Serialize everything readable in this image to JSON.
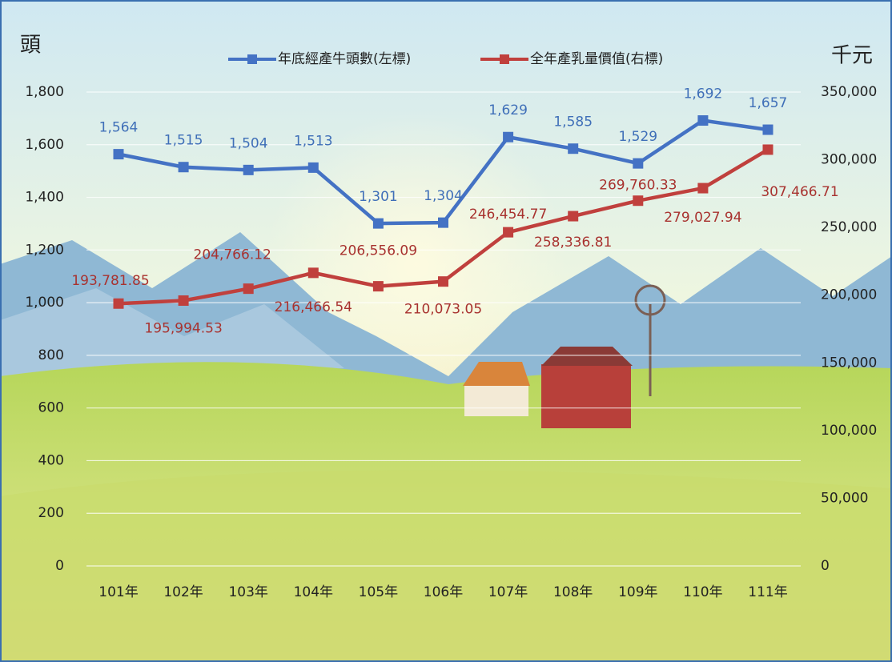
{
  "chart_data": {
    "type": "line",
    "y_axis_title": "頭",
    "y2_axis_title": "千元",
    "categories": [
      "101年",
      "102年",
      "103年",
      "104年",
      "105年",
      "106年",
      "107年",
      "108年",
      "109年",
      "110年",
      "111年"
    ],
    "series": [
      {
        "name": "年底經產牛頭數(左標)",
        "color": "#4472c4",
        "axis": "y",
        "values": [
          1564,
          1515,
          1504,
          1513,
          1301,
          1304,
          1629,
          1585,
          1529,
          1692,
          1657
        ],
        "value_labels": [
          "1,564",
          "1,515",
          "1,504",
          "1,513",
          "1,301",
          "1,304",
          "1,629",
          "1,585",
          "1,529",
          "1,692",
          "1,657"
        ]
      },
      {
        "name": "全年產乳量價值(右標)",
        "color": "#c0403d",
        "axis": "y2",
        "values": [
          193781.85,
          195994.53,
          204766.12,
          216466.54,
          206556.09,
          210073.05,
          246454.77,
          258336.81,
          269760.33,
          279027.94,
          307466.71
        ],
        "value_labels": [
          "193,781.85",
          "195,994.53",
          "204,766.12",
          "216,466.54",
          "206,556.09",
          "210,073.05",
          "246,454.77",
          "258,336.81",
          "269,760.33",
          "279,027.94",
          "307,466.71"
        ]
      }
    ],
    "ylim": [
      0,
      1800
    ],
    "yticks": [
      0,
      200,
      400,
      600,
      800,
      {
        "value": 1000,
        "label": "1,000"
      },
      {
        "value": 1200,
        "label": "1,200"
      },
      {
        "value": 1400,
        "label": "1,400"
      },
      {
        "value": 1600,
        "label": "1,600"
      },
      {
        "value": 1800,
        "label": "1,800"
      }
    ],
    "y2lim": [
      0,
      350000
    ],
    "y2ticks": [
      0,
      {
        "value": 50000,
        "label": "50,000"
      },
      {
        "value": 100000,
        "label": "100,000"
      },
      {
        "value": 150000,
        "label": "150,000"
      },
      {
        "value": 200000,
        "label": "200,000"
      },
      {
        "value": 250000,
        "label": "250,000"
      },
      {
        "value": 300000,
        "label": "300,000"
      },
      {
        "value": 350000,
        "label": "350,000"
      }
    ],
    "grid": true,
    "legend": "top"
  }
}
